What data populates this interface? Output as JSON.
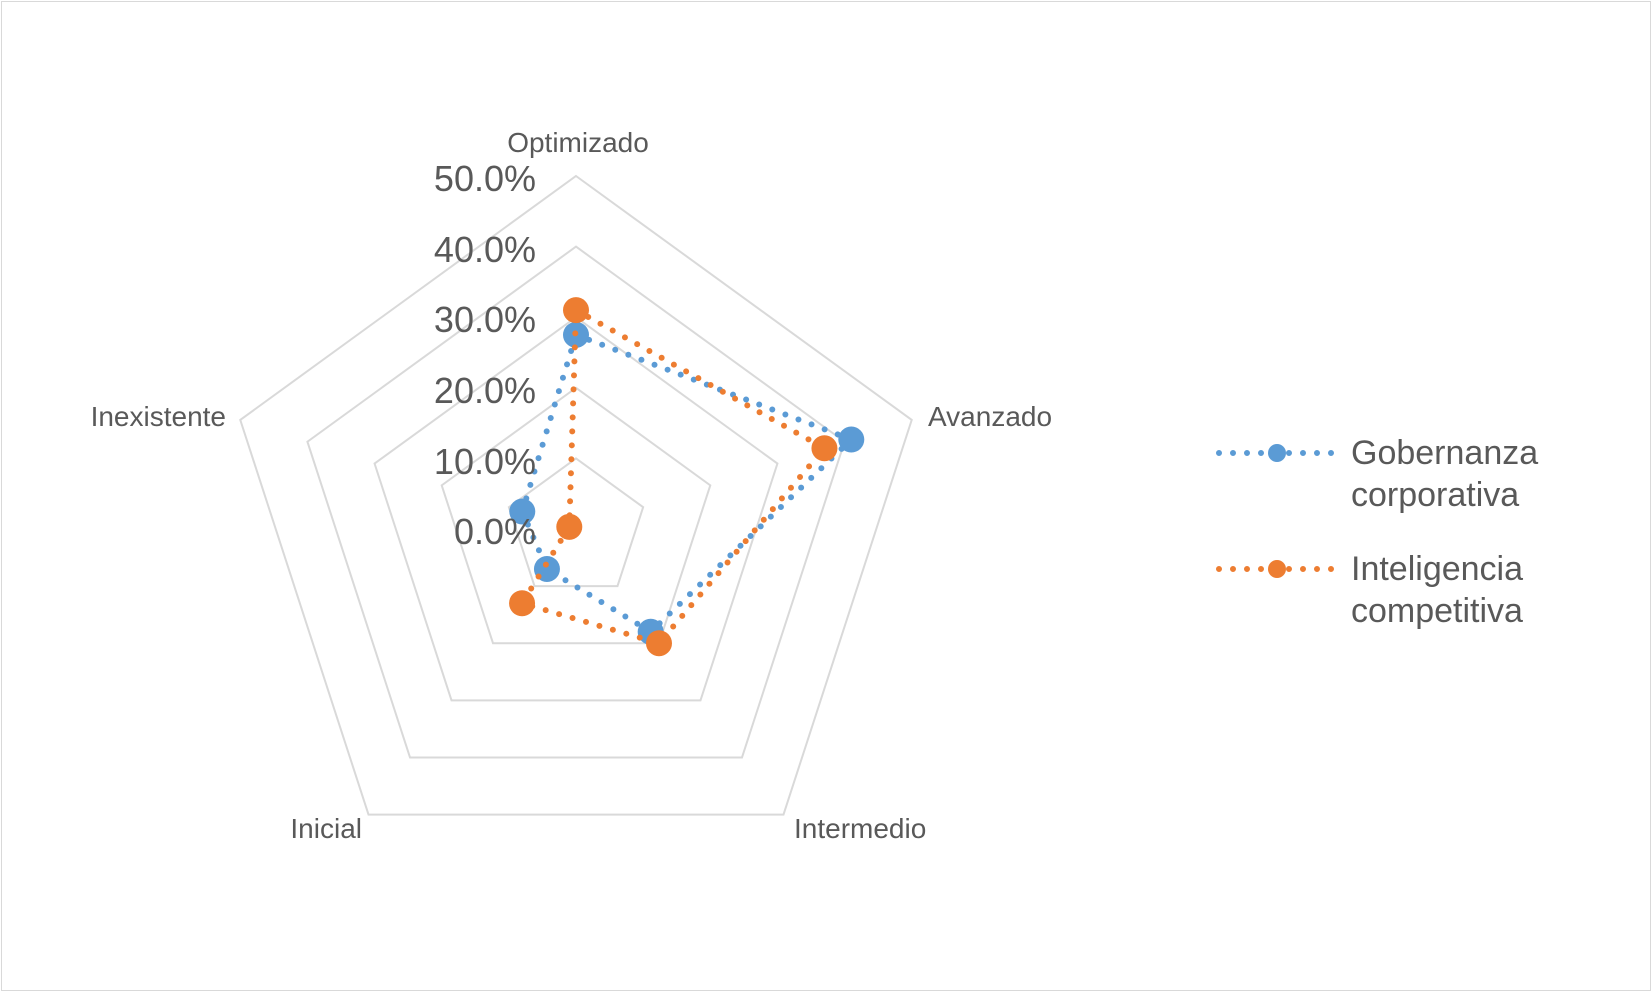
{
  "chart_data": {
    "type": "radar",
    "title": "",
    "categories": [
      "Optimizado",
      "Avanzado",
      "Intermedio",
      "Inicial",
      "Inexistente"
    ],
    "rlim": [
      0,
      50
    ],
    "ticks": [
      "0.0%",
      "10.0%",
      "20.0%",
      "30.0%",
      "40.0%",
      "50.0%"
    ],
    "tick_values": [
      0,
      10,
      20,
      30,
      40,
      50
    ],
    "grid": true,
    "legend_position": "right",
    "series": [
      {
        "name_lines": [
          "Gobernanza",
          "corporativa"
        ],
        "color": "#5B9BD5",
        "line_style": "dotted",
        "marker": "circle",
        "values": [
          27.5,
          41,
          18,
          7,
          8
        ]
      },
      {
        "name_lines": [
          "Inteligencia",
          "competitiva"
        ],
        "color": "#ED7D31",
        "line_style": "dotted",
        "marker": "circle",
        "values": [
          31,
          37,
          20,
          13,
          1
        ]
      }
    ]
  }
}
